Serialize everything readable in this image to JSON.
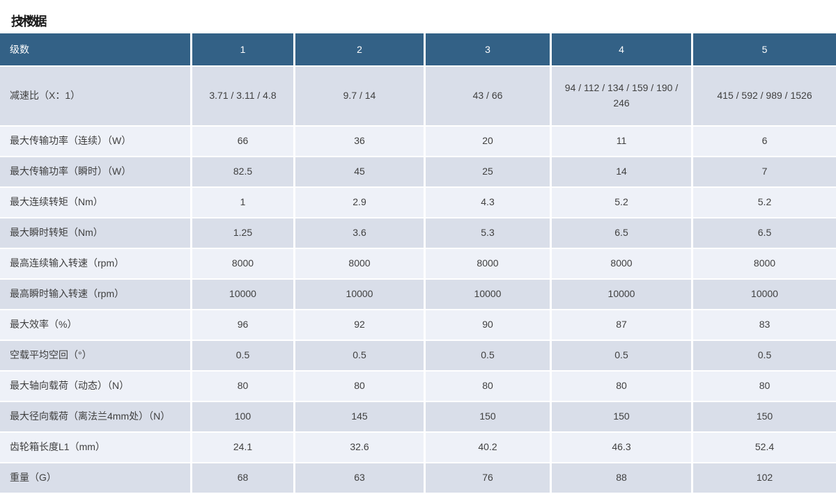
{
  "page_title": "技术数据",
  "colors": {
    "header_bg": "#336186",
    "row_odd": "#d9dee9",
    "row_even": "#eef1f8",
    "title_color": "#1c1c1c"
  },
  "table": {
    "header": [
      "级数",
      "1",
      "2",
      "3",
      "4",
      "5"
    ],
    "rows": [
      {
        "label": "减速比（X：1）",
        "values": [
          "3.71 / 3.11 / 4.8",
          "9.7 / 14",
          "43 / 66",
          "94 / 112 / 134 / 159 / 190 / 246",
          "415 / 592 / 989 / 1526"
        ]
      },
      {
        "label": "最大传输功率（连续）（W）",
        "values": [
          "66",
          "36",
          "20",
          "11",
          "6"
        ]
      },
      {
        "label": "最大传输功率（瞬时）（W）",
        "values": [
          "82.5",
          "45",
          "25",
          "14",
          "7"
        ]
      },
      {
        "label": "最大连续转矩（Nm）",
        "values": [
          "1",
          "2.9",
          "4.3",
          "5.2",
          "5.2"
        ]
      },
      {
        "label": "最大瞬时转矩（Nm）",
        "values": [
          "1.25",
          "3.6",
          "5.3",
          "6.5",
          "6.5"
        ]
      },
      {
        "label": "最高连续输入转速（rpm）",
        "values": [
          "8000",
          "8000",
          "8000",
          "8000",
          "8000"
        ]
      },
      {
        "label": "最高瞬时输入转速（rpm）",
        "values": [
          "10000",
          "10000",
          "10000",
          "10000",
          "10000"
        ]
      },
      {
        "label": "最大效率（%）",
        "values": [
          "96",
          "92",
          "90",
          "87",
          "83"
        ]
      },
      {
        "label": "空载平均空回（°）",
        "values": [
          "0.5",
          "0.5",
          "0.5",
          "0.5",
          "0.5"
        ]
      },
      {
        "label": "最大轴向载荷（动态）（N）",
        "values": [
          "80",
          "80",
          "80",
          "80",
          "80"
        ]
      },
      {
        "label": "最大径向载荷（离法兰4mm处）（N）",
        "values": [
          "100",
          "145",
          "150",
          "150",
          "150"
        ]
      },
      {
        "label": "齿轮箱长度L1（mm）",
        "values": [
          "24.1",
          "32.6",
          "40.2",
          "46.3",
          "52.4"
        ]
      },
      {
        "label": "重量（G）",
        "values": [
          "68",
          "63",
          "76",
          "88",
          "102"
        ]
      }
    ]
  }
}
